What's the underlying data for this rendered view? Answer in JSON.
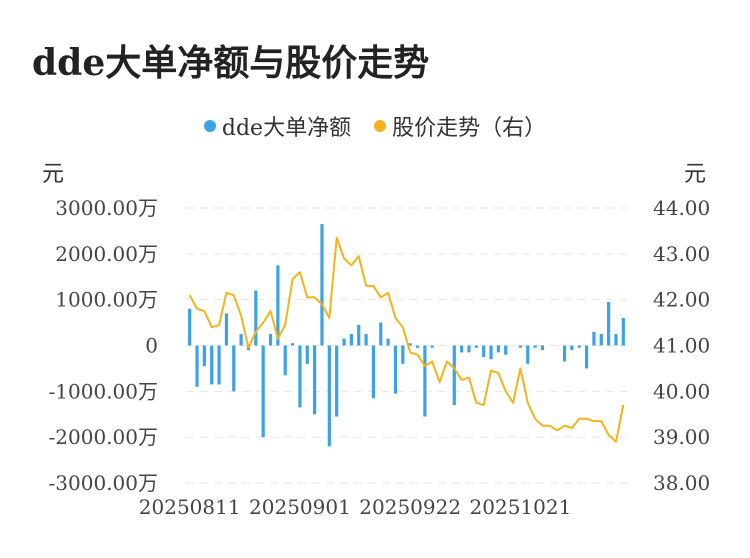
{
  "title": "dde大单净额与股价走势",
  "legend": [
    {
      "label": "dde大单净额",
      "color": "#3aa2e6"
    },
    {
      "label": "股价走势（右）",
      "color": "#f5b21c"
    }
  ],
  "left_unit": "元",
  "right_unit": "元",
  "chart_data": {
    "type": "bar+line",
    "title": "dde大单净额与股价走势",
    "x_tick_labels": [
      "20250811",
      "20250901",
      "20250922",
      "20251021"
    ],
    "left_axis": {
      "unit": "元",
      "ticks": [
        "3000.00万",
        "2000.00万",
        "1000.00万",
        "0",
        "-1000.00万",
        "-2000.00万",
        "-3000.00万"
      ],
      "ylim": [
        -3000,
        3000
      ]
    },
    "right_axis": {
      "unit": "元",
      "ticks": [
        "44.00",
        "43.00",
        "42.00",
        "41.00",
        "40.00",
        "39.00",
        "38.00"
      ],
      "ylim": [
        38,
        44
      ]
    },
    "grid": "horizontal dashed",
    "legend_position": "top-center",
    "series": [
      {
        "name": "dde大单净额",
        "type": "bar",
        "axis": "left",
        "unit": "万",
        "color": "#3aa2e6",
        "values": [
          800,
          -900,
          -450,
          -850,
          -850,
          700,
          -1000,
          250,
          -100,
          1200,
          -2000,
          250,
          1750,
          -650,
          50,
          -1350,
          -400,
          -1500,
          2650,
          -2200,
          -1550,
          150,
          250,
          450,
          250,
          -1150,
          500,
          150,
          -1050,
          -400,
          50,
          -50,
          -1550,
          -50,
          0,
          0,
          -1300,
          -150,
          -150,
          -50,
          -250,
          -300,
          -150,
          -200,
          0,
          -50,
          -400,
          -50,
          -100,
          0,
          0,
          -350,
          -100,
          -50,
          -500,
          300,
          250,
          950,
          250,
          600
        ]
      },
      {
        "name": "股价走势（右）",
        "type": "line",
        "axis": "right",
        "color": "#f5b21c",
        "values": [
          42.1,
          41.8,
          41.75,
          41.4,
          41.45,
          42.15,
          42.1,
          41.65,
          40.95,
          41.3,
          41.5,
          41.75,
          41.15,
          41.45,
          42.45,
          42.6,
          42.05,
          42.05,
          41.9,
          41.6,
          43.35,
          42.9,
          42.75,
          42.95,
          42.3,
          42.3,
          42.05,
          42.15,
          41.6,
          41.4,
          40.85,
          40.8,
          40.55,
          40.65,
          40.2,
          40.65,
          40.5,
          40.25,
          40.3,
          39.75,
          39.7,
          40.45,
          40.4,
          40.0,
          39.75,
          40.5,
          39.75,
          39.4,
          39.25,
          39.25,
          39.15,
          39.25,
          39.2,
          39.4,
          39.4,
          39.35,
          39.35,
          39.05,
          38.9,
          39.7
        ]
      }
    ]
  }
}
